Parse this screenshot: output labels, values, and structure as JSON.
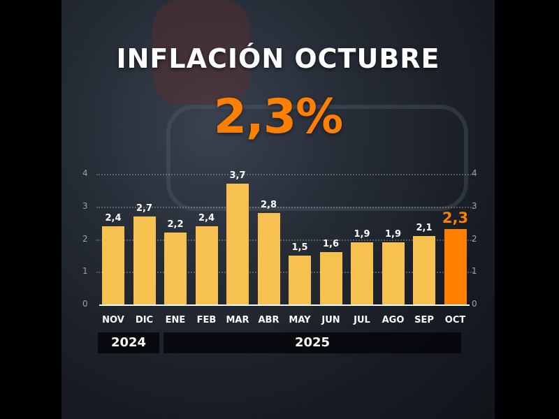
{
  "header": {
    "title": "INFLACIÓN OCTUBRE",
    "headline_value": "2,3%"
  },
  "colors": {
    "bar": "#f6c14e",
    "highlight": "#ff7f00",
    "title": "#ffffff"
  },
  "axis": {
    "ticks": [
      "4",
      "3",
      "2",
      "1",
      "0"
    ]
  },
  "years": [
    {
      "label": "2024"
    },
    {
      "label": "2025"
    }
  ],
  "chart_data": {
    "type": "bar",
    "title": "INFLACIÓN OCTUBRE",
    "subtitle": "2,3%",
    "categories": [
      "NOV",
      "DIC",
      "ENE",
      "FEB",
      "MAR",
      "ABR",
      "MAY",
      "JUN",
      "JUL",
      "AGO",
      "SEP",
      "OCT"
    ],
    "values": [
      2.4,
      2.7,
      2.2,
      2.4,
      3.7,
      2.8,
      1.5,
      1.6,
      1.9,
      1.9,
      2.1,
      2.3
    ],
    "value_labels": [
      "2,4",
      "2,7",
      "2,2",
      "2,4",
      "3,7",
      "2,8",
      "1,5",
      "1,6",
      "1,9",
      "1,9",
      "2,1",
      "2,3"
    ],
    "highlight_index": 11,
    "year_groups": [
      {
        "label": "2024",
        "categories": [
          "NOV",
          "DIC"
        ]
      },
      {
        "label": "2025",
        "categories": [
          "ENE",
          "FEB",
          "MAR",
          "ABR",
          "MAY",
          "JUN",
          "JUL",
          "AGO",
          "SEP",
          "OCT"
        ]
      }
    ],
    "xlabel": "",
    "ylabel": "",
    "ylim": [
      0,
      4
    ],
    "yticks": [
      0,
      1,
      2,
      3,
      4
    ],
    "grid": true,
    "legend": "none"
  }
}
